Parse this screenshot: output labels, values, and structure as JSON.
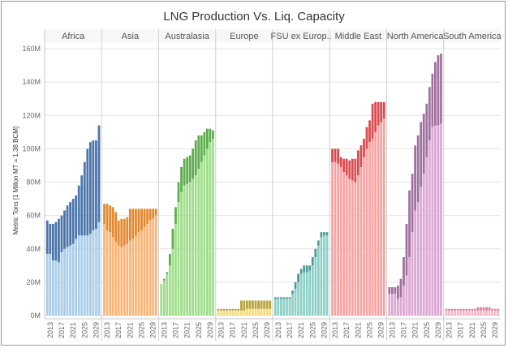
{
  "chart_data": {
    "type": "bar",
    "title": "LNG Production Vs. Liq. Capacity",
    "ylabel": "Metric Tons [1 Millon MT = 1.38 BCM]",
    "ylim": [
      0,
      160
    ],
    "yticks": [
      {
        "value": 0,
        "label": "0M"
      },
      {
        "value": 20,
        "label": "20M"
      },
      {
        "value": 40,
        "label": "40M"
      },
      {
        "value": 60,
        "label": "60M"
      },
      {
        "value": 80,
        "label": "80M"
      },
      {
        "value": 100,
        "label": "100M"
      },
      {
        "value": 120,
        "label": "120M"
      },
      {
        "value": 140,
        "label": "140M"
      },
      {
        "value": 160,
        "label": "160M"
      }
    ],
    "years": [
      2012,
      2013,
      2014,
      2015,
      2016,
      2017,
      2018,
      2019,
      2020,
      2021,
      2022,
      2023,
      2024,
      2025,
      2026,
      2027,
      2028,
      2029,
      2030
    ],
    "year_tick_labels": [
      "2013",
      "2017",
      "2021",
      "2025",
      "2029"
    ],
    "grid": true,
    "panels": [
      {
        "name": "Africa",
        "color_production": "#a9cde9",
        "color_capacity": "#4a74aa",
        "production": [
          37,
          37,
          33,
          33,
          32,
          38,
          40,
          41,
          42,
          43,
          46,
          48,
          48,
          48,
          48,
          49,
          51,
          52,
          56
        ],
        "capacity": [
          57,
          55,
          55,
          56,
          58,
          60,
          63,
          66,
          68,
          70,
          72,
          78,
          84,
          92,
          100,
          104,
          105,
          105,
          114
        ]
      },
      {
        "name": "Asia",
        "color_production": "#f9b577",
        "color_capacity": "#e2872e",
        "production": [
          55,
          51,
          50,
          47,
          44,
          42,
          41,
          42,
          43,
          45,
          46,
          48,
          50,
          51,
          53,
          55,
          57,
          58,
          60
        ],
        "capacity": [
          67,
          67,
          66,
          65,
          62,
          57,
          58,
          58,
          59,
          64,
          64,
          64,
          64,
          64,
          64,
          64,
          64,
          64,
          64
        ]
      },
      {
        "name": "Australasia",
        "color_production": "#9fdd8a",
        "color_capacity": "#5aab4a",
        "production": [
          19,
          21,
          25,
          30,
          40,
          55,
          68,
          74,
          78,
          79,
          80,
          82,
          84,
          88,
          92,
          96,
          100,
          104,
          106
        ],
        "capacity": [
          19,
          22,
          26,
          37,
          52,
          65,
          80,
          89,
          94,
          95,
          96,
          100,
          105,
          108,
          108,
          110,
          112,
          112,
          111
        ]
      },
      {
        "name": "Europe",
        "color_production": "#f4dc7a",
        "color_capacity": "#b8a43a",
        "production": [
          3,
          3,
          3,
          3,
          3,
          3,
          3,
          3,
          3,
          3,
          4,
          4,
          4,
          4,
          4,
          4,
          4,
          4,
          4
        ],
        "capacity": [
          4,
          4,
          4,
          4,
          4,
          4,
          4,
          4,
          9,
          9,
          9,
          9,
          9,
          9,
          9,
          9,
          9,
          9,
          9
        ]
      },
      {
        "name": "FSU ex Europ..",
        "color_production": "#8ed0c8",
        "color_capacity": "#4d9a93",
        "production": [
          10,
          10,
          10,
          10,
          10,
          10,
          13,
          16,
          20,
          25,
          26,
          26,
          27,
          30,
          35,
          42,
          47,
          48,
          48
        ],
        "capacity": [
          11,
          11,
          11,
          11,
          11,
          11,
          15,
          20,
          25,
          28,
          30,
          30,
          30,
          35,
          40,
          45,
          50,
          50,
          50
        ]
      },
      {
        "name": "Middle East",
        "color_production": "#f5a4a4",
        "color_capacity": "#d94a4e",
        "production": [
          92,
          92,
          91,
          89,
          86,
          84,
          82,
          81,
          80,
          84,
          89,
          95,
          100,
          104,
          106,
          110,
          114,
          116,
          118
        ],
        "capacity": [
          100,
          100,
          100,
          95,
          94,
          94,
          93,
          94,
          94,
          99,
          102,
          106,
          113,
          117,
          127,
          128,
          128,
          128,
          128
        ]
      },
      {
        "name": "North America",
        "color_production": "#dca8d3",
        "color_capacity": "#a0709e",
        "production": [
          13,
          13,
          13,
          10,
          11,
          18,
          24,
          35,
          50,
          63,
          68,
          77,
          85,
          95,
          105,
          113,
          114,
          114,
          115
        ],
        "capacity": [
          17,
          17,
          17,
          18,
          22,
          35,
          55,
          75,
          85,
          102,
          108,
          116,
          121,
          127,
          137,
          145,
          152,
          156,
          157
        ]
      },
      {
        "name": "South America",
        "color_production": "#f3b8c8",
        "color_capacity": "#d8839a",
        "production": [
          3,
          3,
          3,
          3,
          3,
          3,
          3,
          3,
          3,
          3,
          3,
          3,
          3,
          3,
          3,
          3,
          3,
          3,
          3
        ],
        "capacity": [
          4,
          4,
          4,
          4,
          4,
          4,
          4,
          4,
          4,
          4,
          4,
          5,
          5,
          5,
          5,
          5,
          4,
          4,
          4
        ]
      }
    ]
  }
}
